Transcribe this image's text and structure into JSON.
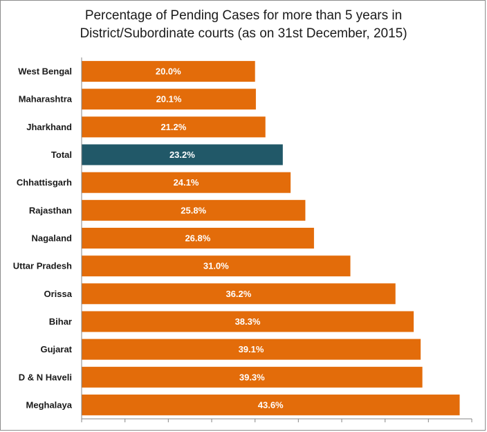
{
  "chart_data": {
    "type": "bar",
    "orientation": "horizontal",
    "title_line1": "Percentage of Pending Cases for more than 5 years in",
    "title_line2": "District/Subordinate courts (as on 31st December, 2015)",
    "categories": [
      "West Bengal",
      "Maharashtra",
      "Jharkhand",
      "Total",
      "Chhattisgarh",
      "Rajasthan",
      "Nagaland",
      "Uttar Pradesh",
      "Orissa",
      "Bihar",
      "Gujarat",
      "D & N Haveli",
      "Meghalaya"
    ],
    "values": [
      20.0,
      20.1,
      21.2,
      23.2,
      24.1,
      25.8,
      26.8,
      31.0,
      36.2,
      38.3,
      39.1,
      39.3,
      43.6
    ],
    "value_labels": [
      "20.0%",
      "20.1%",
      "21.2%",
      "23.2%",
      "24.1%",
      "25.8%",
      "26.8%",
      "31.0%",
      "36.2%",
      "38.3%",
      "39.1%",
      "39.3%",
      "43.6%"
    ],
    "xlim": [
      0,
      45
    ],
    "grid": false,
    "colors": {
      "bar": "#e36c0a",
      "highlight": "#215868",
      "axis": "#868686"
    },
    "highlight_category": "Total"
  }
}
